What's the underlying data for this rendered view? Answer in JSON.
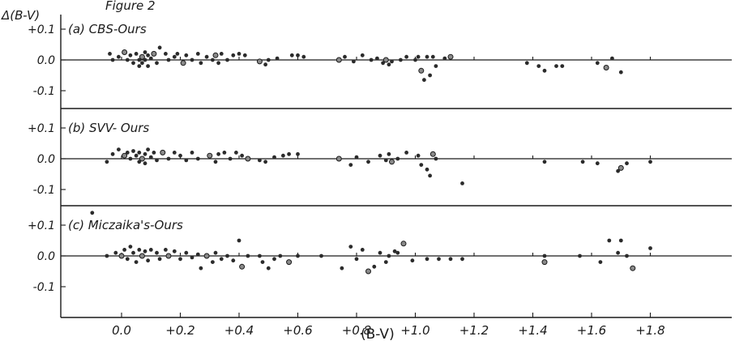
{
  "figure_title": "Figure 2",
  "y_axis_label": "Δ(B-V)",
  "x_axis_label": "(B-V)",
  "y_tick_labels": [
    "+0.1",
    "0.0",
    "-0.1"
  ],
  "chart_data": [
    {
      "type": "scatter",
      "panel_label": "(a) CBS-Ours",
      "xlabel": "(B-V)",
      "ylabel": "Δ(B-V)",
      "xlim": [
        -0.12,
        1.9
      ],
      "ylim": [
        -0.15,
        0.15
      ],
      "x_ticks": [
        "0.0",
        "+0.2",
        "+0.4",
        "+0.6",
        "+0.8",
        "+1.0",
        "+1.2",
        "+1.4",
        "+1.6",
        "+1.8"
      ],
      "y_ticks": [
        "+0.1",
        "0.0",
        "-0.1"
      ],
      "grid": false,
      "points": [
        [
          -0.04,
          0.02
        ],
        [
          -0.03,
          0.0
        ],
        [
          -0.01,
          0.01
        ],
        [
          0.01,
          0.025
        ],
        [
          0.02,
          0.0
        ],
        [
          0.03,
          0.015
        ],
        [
          0.04,
          -0.01
        ],
        [
          0.05,
          0.02
        ],
        [
          0.06,
          0.0
        ],
        [
          0.06,
          -0.02
        ],
        [
          0.07,
          0.01
        ],
        [
          0.07,
          -0.01
        ],
        [
          0.08,
          0.025
        ],
        [
          0.08,
          0.0
        ],
        [
          0.09,
          0.015
        ],
        [
          0.09,
          -0.02
        ],
        [
          0.1,
          0.005
        ],
        [
          0.11,
          0.02
        ],
        [
          0.12,
          -0.01
        ],
        [
          0.13,
          0.04
        ],
        [
          0.15,
          0.02
        ],
        [
          0.16,
          0.0
        ],
        [
          0.18,
          0.01
        ],
        [
          0.19,
          0.02
        ],
        [
          0.21,
          -0.01
        ],
        [
          0.22,
          0.015
        ],
        [
          0.24,
          0.0
        ],
        [
          0.26,
          0.02
        ],
        [
          0.27,
          -0.01
        ],
        [
          0.29,
          0.01
        ],
        [
          0.31,
          0.0
        ],
        [
          0.32,
          0.015
        ],
        [
          0.33,
          -0.01
        ],
        [
          0.34,
          0.02
        ],
        [
          0.36,
          0.0
        ],
        [
          0.38,
          0.015
        ],
        [
          0.4,
          0.02
        ],
        [
          0.42,
          0.015
        ],
        [
          0.47,
          -0.005
        ],
        [
          0.49,
          -0.015
        ],
        [
          0.5,
          0.0
        ],
        [
          0.53,
          0.005
        ],
        [
          0.58,
          0.015
        ],
        [
          0.6,
          0.015
        ],
        [
          0.62,
          0.01
        ],
        [
          0.74,
          0.0
        ],
        [
          0.76,
          0.01
        ],
        [
          0.79,
          -0.005
        ],
        [
          0.82,
          0.015
        ],
        [
          0.85,
          0.0
        ],
        [
          0.87,
          0.005
        ],
        [
          0.89,
          -0.01
        ],
        [
          0.9,
          0.0
        ],
        [
          0.91,
          -0.015
        ],
        [
          0.92,
          -0.005
        ],
        [
          0.95,
          0.0
        ],
        [
          0.97,
          0.01
        ],
        [
          1.0,
          0.0
        ],
        [
          1.01,
          0.01
        ],
        [
          1.02,
          -0.035
        ],
        [
          1.03,
          -0.065
        ],
        [
          1.04,
          0.01
        ],
        [
          1.05,
          -0.05
        ],
        [
          1.06,
          0.01
        ],
        [
          1.07,
          -0.02
        ],
        [
          1.1,
          0.005
        ],
        [
          1.12,
          0.01
        ],
        [
          1.38,
          -0.01
        ],
        [
          1.42,
          -0.02
        ],
        [
          1.44,
          -0.035
        ],
        [
          1.48,
          -0.02
        ],
        [
          1.5,
          -0.02
        ],
        [
          1.62,
          -0.01
        ],
        [
          1.65,
          -0.025
        ],
        [
          1.67,
          0.005
        ],
        [
          1.7,
          -0.04
        ]
      ]
    },
    {
      "type": "scatter",
      "panel_label": "(b) SVV- Ours",
      "xlabel": "(B-V)",
      "ylabel": "Δ(B-V)",
      "xlim": [
        -0.12,
        1.9
      ],
      "ylim": [
        -0.15,
        0.15
      ],
      "x_ticks": [
        "0.0",
        "+0.2",
        "+0.4",
        "+0.6",
        "+0.8",
        "+1.0",
        "+1.2",
        "+1.4",
        "+1.6",
        "+1.8"
      ],
      "y_ticks": [
        "+0.1",
        "0.0",
        "-0.1"
      ],
      "grid": false,
      "points": [
        [
          -0.05,
          -0.01
        ],
        [
          -0.03,
          0.015
        ],
        [
          -0.01,
          0.03
        ],
        [
          0.01,
          0.01
        ],
        [
          0.02,
          0.02
        ],
        [
          0.03,
          0.0
        ],
        [
          0.04,
          0.025
        ],
        [
          0.05,
          0.01
        ],
        [
          0.06,
          -0.01
        ],
        [
          0.06,
          0.02
        ],
        [
          0.07,
          0.0
        ],
        [
          0.08,
          0.015
        ],
        [
          0.08,
          -0.015
        ],
        [
          0.09,
          0.03
        ],
        [
          0.1,
          0.005
        ],
        [
          0.11,
          0.02
        ],
        [
          0.12,
          -0.005
        ],
        [
          0.14,
          0.02
        ],
        [
          0.16,
          0.0
        ],
        [
          0.18,
          0.02
        ],
        [
          0.2,
          0.01
        ],
        [
          0.22,
          -0.005
        ],
        [
          0.24,
          0.02
        ],
        [
          0.26,
          0.0
        ],
        [
          0.3,
          0.01
        ],
        [
          0.32,
          -0.01
        ],
        [
          0.33,
          0.015
        ],
        [
          0.35,
          0.02
        ],
        [
          0.37,
          0.0
        ],
        [
          0.39,
          0.02
        ],
        [
          0.41,
          0.01
        ],
        [
          0.43,
          0.0
        ],
        [
          0.47,
          -0.005
        ],
        [
          0.49,
          -0.01
        ],
        [
          0.52,
          0.005
        ],
        [
          0.55,
          0.01
        ],
        [
          0.57,
          0.015
        ],
        [
          0.6,
          0.015
        ],
        [
          0.74,
          0.0
        ],
        [
          0.78,
          -0.02
        ],
        [
          0.8,
          0.005
        ],
        [
          0.84,
          -0.01
        ],
        [
          0.88,
          0.01
        ],
        [
          0.9,
          -0.005
        ],
        [
          0.91,
          0.015
        ],
        [
          0.92,
          -0.01
        ],
        [
          0.94,
          0.0
        ],
        [
          0.97,
          0.02
        ],
        [
          1.01,
          0.01
        ],
        [
          1.02,
          -0.02
        ],
        [
          1.04,
          -0.035
        ],
        [
          1.05,
          -0.055
        ],
        [
          1.06,
          0.015
        ],
        [
          1.07,
          0.0
        ],
        [
          1.16,
          -0.08
        ],
        [
          1.44,
          -0.01
        ],
        [
          1.57,
          -0.01
        ],
        [
          1.62,
          -0.015
        ],
        [
          1.69,
          -0.04
        ],
        [
          1.7,
          -0.03
        ],
        [
          1.72,
          -0.015
        ],
        [
          1.8,
          -0.01
        ]
      ]
    },
    {
      "type": "scatter",
      "panel_label": "(c) Miczaika's-Ours",
      "xlabel": "(B-V)",
      "ylabel": "Δ(B-V)",
      "xlim": [
        -0.12,
        1.9
      ],
      "ylim": [
        -0.15,
        0.15
      ],
      "x_ticks": [
        "0.0",
        "+0.2",
        "+0.4",
        "+0.6",
        "+0.8",
        "+1.0",
        "+1.2",
        "+1.4",
        "+1.6",
        "+1.8"
      ],
      "y_ticks": [
        "+0.1",
        "0.0",
        "-0.1"
      ],
      "grid": false,
      "points": [
        [
          -0.1,
          0.14
        ],
        [
          -0.05,
          0.0
        ],
        [
          -0.02,
          0.01
        ],
        [
          0.0,
          0.0
        ],
        [
          0.01,
          0.02
        ],
        [
          0.02,
          -0.01
        ],
        [
          0.03,
          0.03
        ],
        [
          0.04,
          0.01
        ],
        [
          0.05,
          -0.02
        ],
        [
          0.06,
          0.02
        ],
        [
          0.07,
          0.0
        ],
        [
          0.08,
          0.015
        ],
        [
          0.09,
          -0.015
        ],
        [
          0.1,
          0.02
        ],
        [
          0.12,
          0.01
        ],
        [
          0.13,
          -0.01
        ],
        [
          0.15,
          0.02
        ],
        [
          0.16,
          0.0
        ],
        [
          0.18,
          0.015
        ],
        [
          0.2,
          -0.01
        ],
        [
          0.22,
          0.01
        ],
        [
          0.24,
          -0.005
        ],
        [
          0.26,
          0.005
        ],
        [
          0.27,
          -0.04
        ],
        [
          0.29,
          0.0
        ],
        [
          0.31,
          -0.02
        ],
        [
          0.32,
          0.01
        ],
        [
          0.34,
          -0.01
        ],
        [
          0.36,
          0.0
        ],
        [
          0.38,
          -0.015
        ],
        [
          0.4,
          0.05
        ],
        [
          0.41,
          -0.035
        ],
        [
          0.43,
          0.0
        ],
        [
          0.47,
          0.0
        ],
        [
          0.48,
          -0.02
        ],
        [
          0.5,
          -0.04
        ],
        [
          0.52,
          -0.01
        ],
        [
          0.54,
          0.0
        ],
        [
          0.57,
          -0.02
        ],
        [
          0.6,
          0.0
        ],
        [
          0.68,
          0.0
        ],
        [
          0.75,
          -0.04
        ],
        [
          0.78,
          0.03
        ],
        [
          0.8,
          -0.01
        ],
        [
          0.82,
          0.02
        ],
        [
          0.84,
          -0.05
        ],
        [
          0.86,
          -0.035
        ],
        [
          0.88,
          0.01
        ],
        [
          0.9,
          -0.02
        ],
        [
          0.91,
          0.0
        ],
        [
          0.93,
          0.015
        ],
        [
          0.94,
          0.01
        ],
        [
          0.96,
          0.04
        ],
        [
          0.99,
          -0.015
        ],
        [
          1.04,
          -0.01
        ],
        [
          1.08,
          -0.01
        ],
        [
          1.12,
          -0.01
        ],
        [
          1.16,
          -0.01
        ],
        [
          1.44,
          0.0
        ],
        [
          1.44,
          -0.02
        ],
        [
          1.56,
          0.0
        ],
        [
          1.63,
          -0.02
        ],
        [
          1.66,
          0.05
        ],
        [
          1.69,
          0.01
        ],
        [
          1.7,
          0.05
        ],
        [
          1.72,
          0.0
        ],
        [
          1.74,
          -0.04
        ],
        [
          1.8,
          0.025
        ]
      ]
    }
  ]
}
